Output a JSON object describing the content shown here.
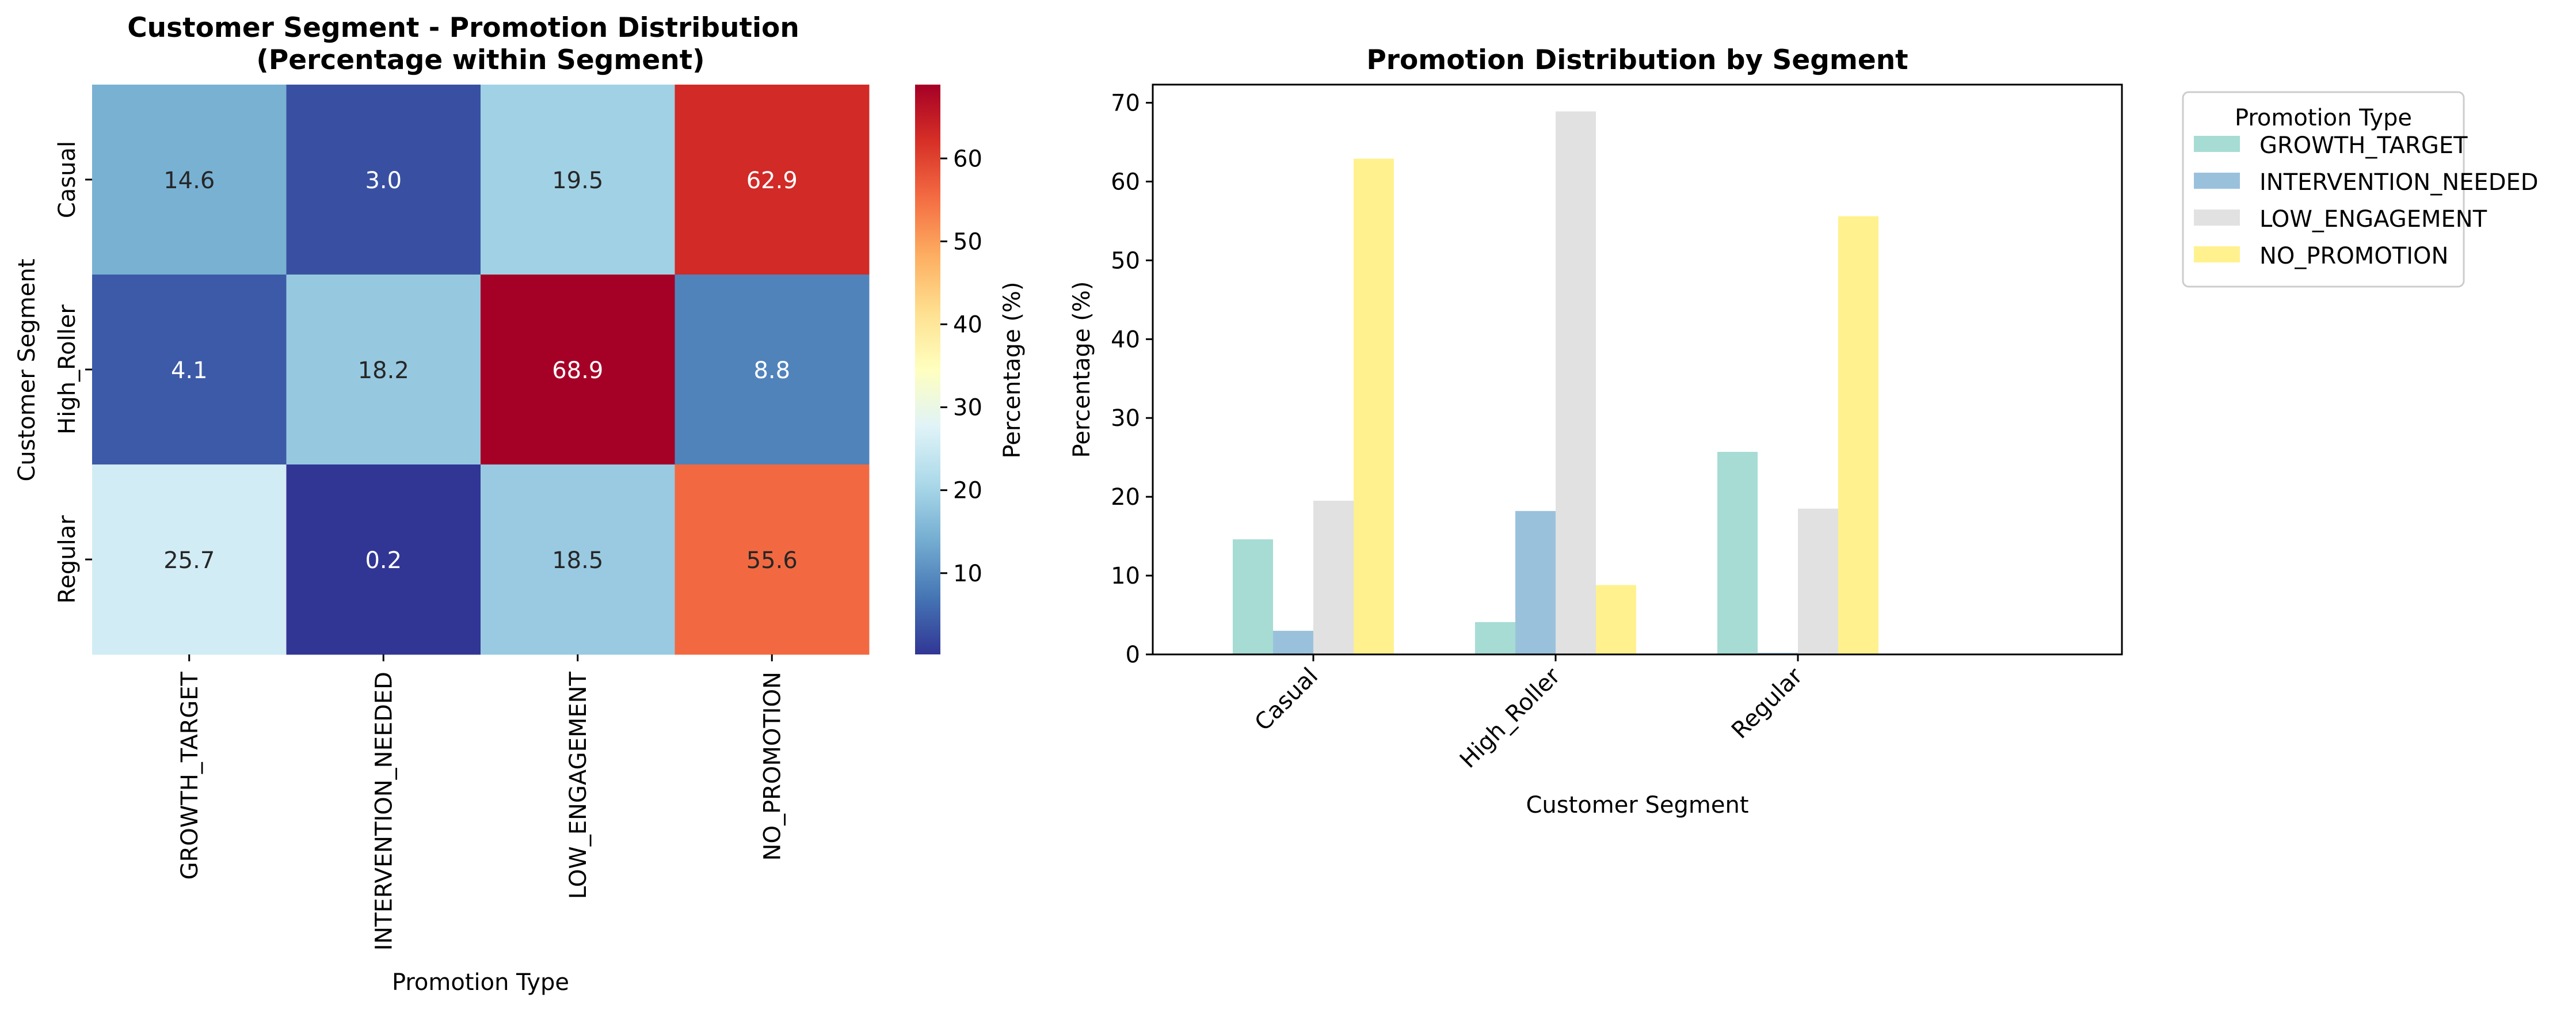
{
  "chart_data": [
    {
      "type": "heatmap",
      "title": "Customer Segment - Promotion Distribution",
      "subtitle": "(Percentage within Segment)",
      "xlabel": "Promotion Type",
      "ylabel": "Customer Segment",
      "x_categories": [
        "GROWTH_TARGET",
        "INTERVENTION_NEEDED",
        "LOW_ENGAGEMENT",
        "NO_PROMOTION"
      ],
      "y_categories": [
        "Casual",
        "High_Roller",
        "Regular"
      ],
      "values": [
        [
          14.6,
          3.0,
          19.5,
          62.9
        ],
        [
          4.1,
          18.2,
          68.9,
          8.8
        ],
        [
          25.7,
          0.2,
          18.5,
          55.6
        ]
      ],
      "colorbar": {
        "label": "Percentage (%)",
        "range": [
          0.2,
          68.9
        ],
        "ticks": [
          10,
          20,
          30,
          40,
          50,
          60
        ],
        "colormap": "RdYlBu_r"
      }
    },
    {
      "type": "bar",
      "title": "Promotion Distribution by Segment",
      "xlabel": "Customer Segment",
      "ylabel": "Percentage (%)",
      "categories": [
        "Casual",
        "High_Roller",
        "Regular"
      ],
      "ylim": [
        0,
        72.3
      ],
      "yticks": [
        0,
        10,
        20,
        30,
        40,
        50,
        60,
        70
      ],
      "grid": false,
      "legend": {
        "title": "Promotion Type",
        "placement": "outside-upper-right"
      },
      "series": [
        {
          "name": "GROWTH_TARGET",
          "values": [
            14.6,
            4.1,
            25.7
          ],
          "color": "#a6dcd4"
        },
        {
          "name": "INTERVENTION_NEEDED",
          "values": [
            3.0,
            18.2,
            0.2
          ],
          "color": "#9ac1dc"
        },
        {
          "name": "LOW_ENGAGEMENT",
          "values": [
            19.5,
            68.9,
            18.5
          ],
          "color": "#e1e1e1"
        },
        {
          "name": "NO_PROMOTION",
          "values": [
            62.9,
            8.8,
            55.6
          ],
          "color": "#fff18e"
        }
      ]
    }
  ]
}
